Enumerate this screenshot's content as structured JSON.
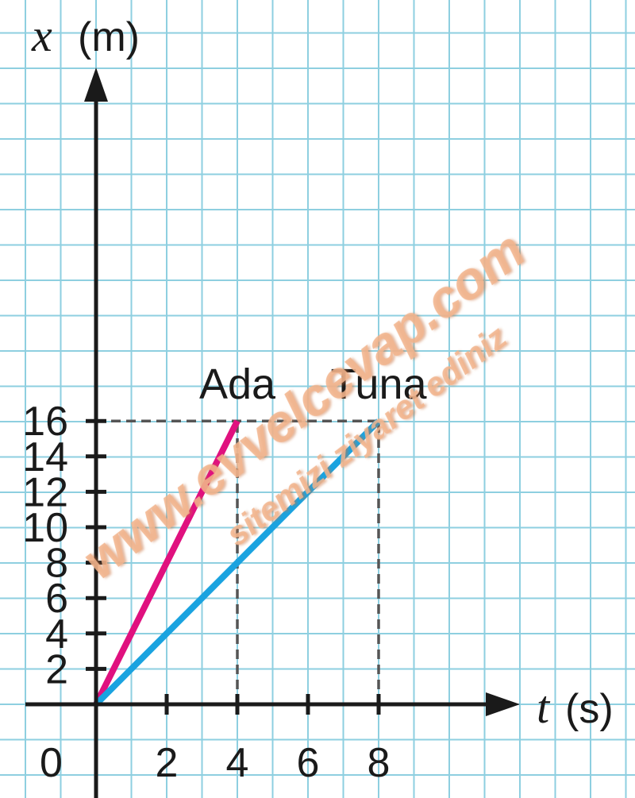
{
  "chart_data": {
    "type": "line",
    "title": "",
    "xlabel": {
      "symbol": "t",
      "unit": "(s)"
    },
    "ylabel": {
      "symbol": "x",
      "unit": "(m)"
    },
    "origin_label": "0",
    "xlim": [
      0,
      8
    ],
    "ylim": [
      0,
      16
    ],
    "xticks": [
      2,
      4,
      6,
      8
    ],
    "yticks": [
      2,
      4,
      6,
      8,
      10,
      12,
      14,
      16
    ],
    "grid": true,
    "series": [
      {
        "name": "Ada",
        "color": "#e0117f",
        "x": [
          0,
          4
        ],
        "y": [
          0,
          16
        ]
      },
      {
        "name": "Tuna",
        "color": "#1aa3e0",
        "x": [
          0,
          8
        ],
        "y": [
          0,
          16
        ]
      }
    ],
    "reference_lines": [
      {
        "from": [
          0,
          16
        ],
        "to": [
          8,
          16
        ]
      },
      {
        "from": [
          4,
          0
        ],
        "to": [
          4,
          16
        ]
      },
      {
        "from": [
          8,
          0
        ],
        "to": [
          8,
          16
        ]
      }
    ]
  },
  "watermark": {
    "line1": "www.evvelcevap.com",
    "line2": "sitemizi ziyaret ediniz"
  },
  "colors": {
    "grid": "#8ecfe0",
    "axis": "#1a1a1a",
    "reference": "#555555",
    "watermark": "#f2b48c"
  }
}
